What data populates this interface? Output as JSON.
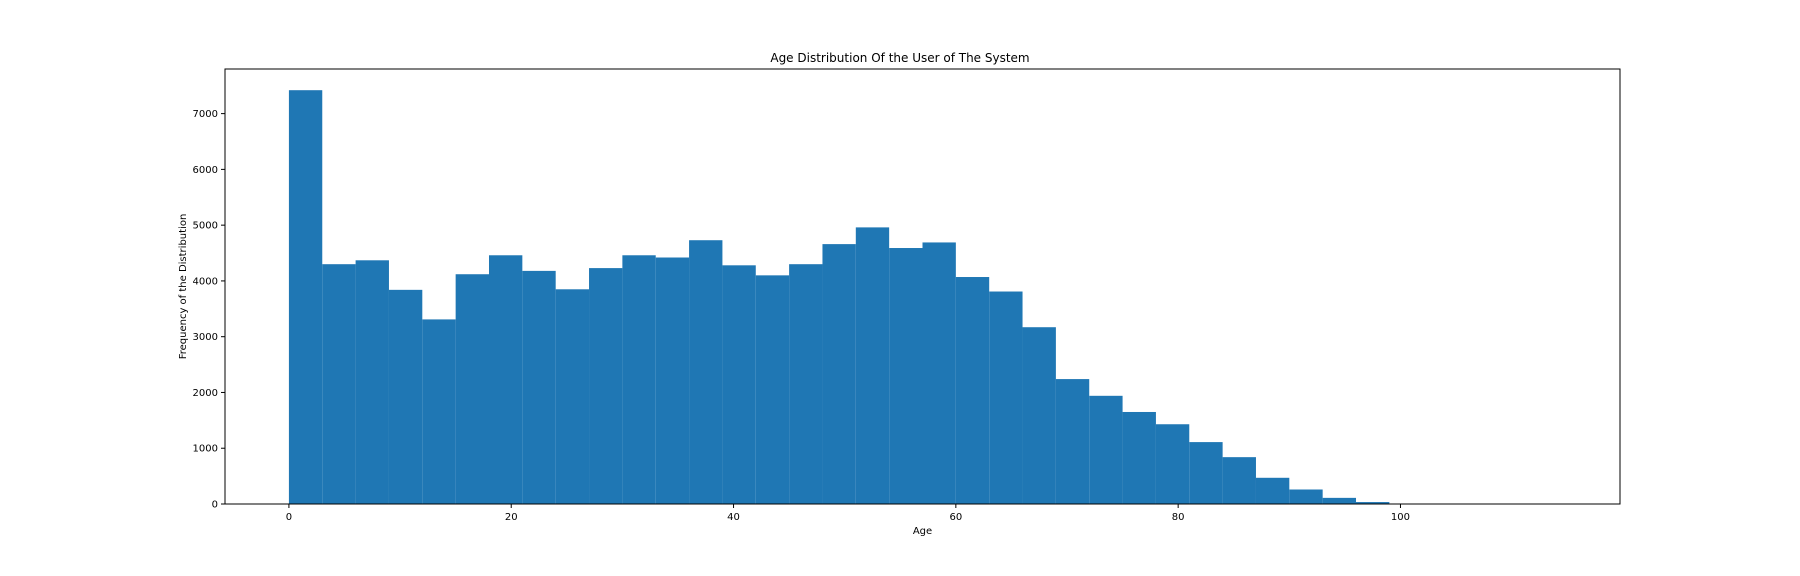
{
  "chart_data": {
    "type": "bar",
    "title": "Age Distribution Of the User of The System",
    "xlabel": "Age",
    "ylabel": "Frequency of the Distribution",
    "xlim": [
      -5.75,
      119.75
    ],
    "ylim": [
      0,
      7800
    ],
    "xticks": [
      0,
      20,
      40,
      60,
      80,
      100
    ],
    "yticks": [
      0,
      1000,
      2000,
      3000,
      4000,
      5000,
      6000,
      7000
    ],
    "grid": false,
    "bar_color": "#1f77b4",
    "bins": [
      {
        "x0": 0,
        "x1": 3,
        "value": 7420
      },
      {
        "x0": 3,
        "x1": 6,
        "value": 4300
      },
      {
        "x0": 6,
        "x1": 9,
        "value": 4370
      },
      {
        "x0": 9,
        "x1": 12,
        "value": 3840
      },
      {
        "x0": 12,
        "x1": 15,
        "value": 3310
      },
      {
        "x0": 15,
        "x1": 18,
        "value": 4120
      },
      {
        "x0": 18,
        "x1": 21,
        "value": 4460
      },
      {
        "x0": 21,
        "x1": 24,
        "value": 4180
      },
      {
        "x0": 24,
        "x1": 27,
        "value": 3850
      },
      {
        "x0": 27,
        "x1": 30,
        "value": 4230
      },
      {
        "x0": 30,
        "x1": 33,
        "value": 4460
      },
      {
        "x0": 33,
        "x1": 36,
        "value": 4420
      },
      {
        "x0": 36,
        "x1": 39,
        "value": 4730
      },
      {
        "x0": 39,
        "x1": 42,
        "value": 4280
      },
      {
        "x0": 42,
        "x1": 45,
        "value": 4100
      },
      {
        "x0": 45,
        "x1": 48,
        "value": 4300
      },
      {
        "x0": 48,
        "x1": 51,
        "value": 4660
      },
      {
        "x0": 51,
        "x1": 54,
        "value": 4960
      },
      {
        "x0": 54,
        "x1": 57,
        "value": 4590
      },
      {
        "x0": 57,
        "x1": 60,
        "value": 4690
      },
      {
        "x0": 60,
        "x1": 63,
        "value": 4070
      },
      {
        "x0": 63,
        "x1": 66,
        "value": 3810
      },
      {
        "x0": 66,
        "x1": 69,
        "value": 3170
      },
      {
        "x0": 69,
        "x1": 72,
        "value": 2240
      },
      {
        "x0": 72,
        "x1": 75,
        "value": 1940
      },
      {
        "x0": 75,
        "x1": 78,
        "value": 1650
      },
      {
        "x0": 78,
        "x1": 81,
        "value": 1430
      },
      {
        "x0": 81,
        "x1": 84,
        "value": 1110
      },
      {
        "x0": 84,
        "x1": 87,
        "value": 840
      },
      {
        "x0": 87,
        "x1": 90,
        "value": 470
      },
      {
        "x0": 90,
        "x1": 93,
        "value": 260
      },
      {
        "x0": 93,
        "x1": 96,
        "value": 110
      },
      {
        "x0": 96,
        "x1": 99,
        "value": 35
      },
      {
        "x0": 99,
        "x1": 102,
        "value": 8
      },
      {
        "x0": 102,
        "x1": 105,
        "value": 3
      },
      {
        "x0": 105,
        "x1": 108,
        "value": 1
      },
      {
        "x0": 108,
        "x1": 111,
        "value": 1
      },
      {
        "x0": 111,
        "x1": 114,
        "value": 1
      }
    ]
  }
}
